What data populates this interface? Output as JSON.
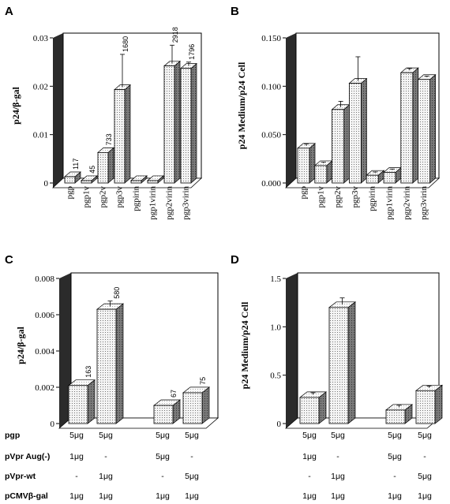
{
  "chart_data": [
    {
      "panel": "A",
      "type": "bar",
      "ylabel": "p24/β-gal",
      "ylim": [
        0,
        0.03
      ],
      "yticks": [
        "0",
        "0.01",
        "0.02",
        "0.03"
      ],
      "categories": [
        "pgp",
        "pgp1v",
        "pgp2v",
        "pgp3v",
        "pgpirin",
        "pgp1virin",
        "pgp2virin",
        "pgp3virin"
      ],
      "values": [
        0.0013,
        0.0005,
        0.0063,
        0.0193,
        0.0005,
        0.0005,
        0.0242,
        0.0237
      ],
      "error": [
        0,
        0,
        0,
        0.0068,
        0,
        0,
        0.0038,
        0.0008
      ],
      "data_labels": [
        "117",
        "45",
        "733",
        "1680",
        "",
        "",
        "2918",
        "1796"
      ]
    },
    {
      "panel": "B",
      "type": "bar",
      "ylabel": "p24 Medium/p24 Cell",
      "ylim": [
        0,
        0.15
      ],
      "yticks": [
        "0.000",
        "0.050",
        "0.100",
        "0.150"
      ],
      "categories": [
        "pgp",
        "pgp1v",
        "pgp2v",
        "pgp3v",
        "pgpirin",
        "pgp1virin",
        "pgp2virin",
        "pgp3virin"
      ],
      "values": [
        0.036,
        0.018,
        0.076,
        0.103,
        0.008,
        0.011,
        0.114,
        0.107
      ],
      "error": [
        0.002,
        0.001,
        0.006,
        0.025,
        0.001,
        0.001,
        0.002,
        0.001
      ],
      "data_labels": [
        "",
        "",
        "",
        "",
        "",
        "",
        "",
        ""
      ]
    },
    {
      "panel": "C",
      "type": "bar",
      "ylabel": "p24/β-gal",
      "ylim": [
        0,
        0.008
      ],
      "yticks": [
        "0",
        "0.002",
        "0.004",
        "0.006",
        "0.008"
      ],
      "values": [
        0.0021,
        0.0063,
        0.001,
        0.0017
      ],
      "error": [
        0,
        0.0003,
        0,
        0
      ],
      "data_labels": [
        "163",
        "580",
        "67",
        "75"
      ]
    },
    {
      "panel": "D",
      "type": "bar",
      "ylabel": "p24 Medium/p24 Cell",
      "ylim": [
        0,
        1.5
      ],
      "yticks": [
        "0",
        "0.5",
        "1.0",
        "1.5"
      ],
      "values": [
        0.27,
        1.2,
        0.14,
        0.34
      ],
      "error": [
        0.02,
        0.07,
        0.02,
        0.02
      ],
      "data_labels": [
        "",
        "",
        "",
        ""
      ]
    }
  ],
  "conditions_table": {
    "rows": [
      {
        "label": "pgp",
        "values": [
          "5μg",
          "5μg",
          "5μg",
          "5μg"
        ]
      },
      {
        "label": "pVpr Aug(-)",
        "values": [
          "1μg",
          "-",
          "5μg",
          "-"
        ]
      },
      {
        "label": "pVpr-wt",
        "values": [
          "-",
          "1μg",
          "-",
          "5μg"
        ]
      },
      {
        "label": "pCMVβ-gal",
        "values": [
          "1μg",
          "1μg",
          "1μg",
          "1μg"
        ]
      }
    ]
  },
  "colors": {
    "bar_face": "#f2f2f2",
    "bar_dot": "#555555",
    "back_wall": "#2b2b2b",
    "axes": "#000000"
  }
}
